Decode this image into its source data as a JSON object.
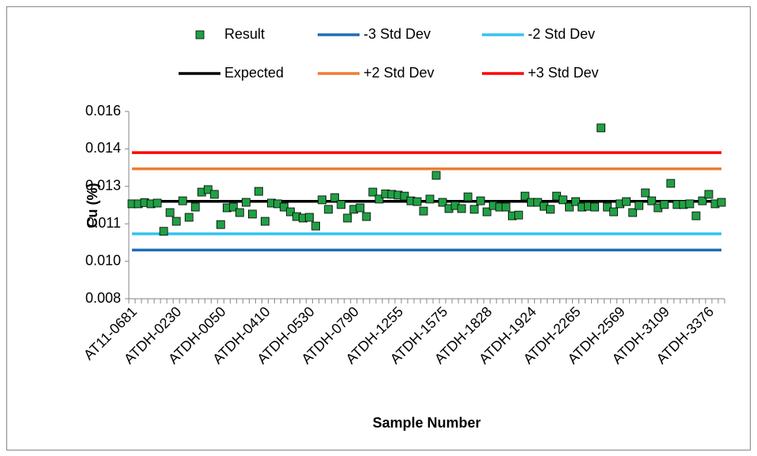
{
  "chart_data": {
    "type": "scatter",
    "x_label": "Sample Number",
    "y_label": "Cu (%)",
    "categories": [
      "AT11-0681",
      null,
      null,
      null,
      null,
      null,
      null,
      "ATDH-0230",
      null,
      null,
      null,
      null,
      null,
      null,
      "ATDH-0050",
      null,
      null,
      null,
      null,
      null,
      null,
      "ATDH-0410",
      null,
      null,
      null,
      null,
      null,
      null,
      "ATDH-0530",
      null,
      null,
      null,
      null,
      null,
      null,
      "ATDH-0790",
      null,
      null,
      null,
      null,
      null,
      null,
      "ATDH-1255",
      null,
      null,
      null,
      null,
      null,
      null,
      "ATDH-1575",
      null,
      null,
      null,
      null,
      null,
      null,
      "ATDH-1828",
      null,
      null,
      null,
      null,
      null,
      null,
      "ATDH-1924",
      null,
      null,
      null,
      null,
      null,
      null,
      "ATDH-2265",
      null,
      null,
      null,
      null,
      null,
      null,
      "ATDH-2569",
      null,
      null,
      null,
      null,
      null,
      null,
      "ATDH-3109",
      null,
      null,
      null,
      null,
      null,
      null,
      "ATDH-3376",
      null,
      null
    ],
    "series": [
      {
        "name": "Result",
        "color": "#21a045",
        "values": [
          0.0118,
          0.0118,
          0.01185,
          0.0118,
          0.01183,
          0.0107,
          0.01145,
          0.0111,
          0.01192,
          0.01126,
          0.01167,
          0.01227,
          0.01237,
          0.01218,
          0.01097,
          0.01164,
          0.01167,
          0.01145,
          0.01186,
          0.01139,
          0.0123,
          0.0111,
          0.01183,
          0.0118,
          0.01167,
          0.01148,
          0.01129,
          0.01123,
          0.01126,
          0.01091,
          0.01196,
          0.01158,
          0.01205,
          0.01177,
          0.01123,
          0.01158,
          0.01164,
          0.01129,
          0.01227,
          0.01199,
          0.0122,
          0.01218,
          0.01215,
          0.01211,
          0.01192,
          0.01189,
          0.01151,
          0.01199,
          0.01294,
          0.01186,
          0.01161,
          0.01173,
          0.01161,
          0.01208,
          0.01158,
          0.01192,
          0.01148,
          0.01173,
          0.01167,
          0.01167,
          0.01132,
          0.01135,
          0.01211,
          0.01186,
          0.01186,
          0.0117,
          0.01158,
          0.01211,
          0.01196,
          0.01167,
          0.01189,
          0.01167,
          0.0117,
          0.01167,
          0.01484,
          0.01167,
          0.01148,
          0.0118,
          0.01189,
          0.01145,
          0.01173,
          0.01224,
          0.01192,
          0.01164,
          0.01177,
          0.01262,
          0.01177,
          0.01177,
          0.0118,
          0.01132,
          0.01192,
          0.01218,
          0.0118,
          0.01186
        ]
      }
    ],
    "reference_lines": [
      {
        "name": "-3 Std Dev",
        "color": "#1f6eb5",
        "value": 0.00995
      },
      {
        "name": "-2 Std Dev",
        "color": "#33c3f0",
        "value": 0.0106
      },
      {
        "name": "Expected",
        "color": "#000000",
        "value": 0.0119
      },
      {
        "name": "+2 Std Dev",
        "color": "#ed7d31",
        "value": 0.0132
      },
      {
        "name": "+3 Std Dev",
        "color": "#ff0000",
        "value": 0.01385
      }
    ],
    "ylim": [
      0.008,
      0.0155
    ],
    "yticks": [
      0.008,
      {
        "value": 0.0095,
        "label": "0.010"
      },
      0.011,
      {
        "value": 0.0125,
        "label": "0.013"
      },
      0.014,
      {
        "value": 0.0155,
        "label": "0.016"
      }
    ],
    "grid": false
  }
}
